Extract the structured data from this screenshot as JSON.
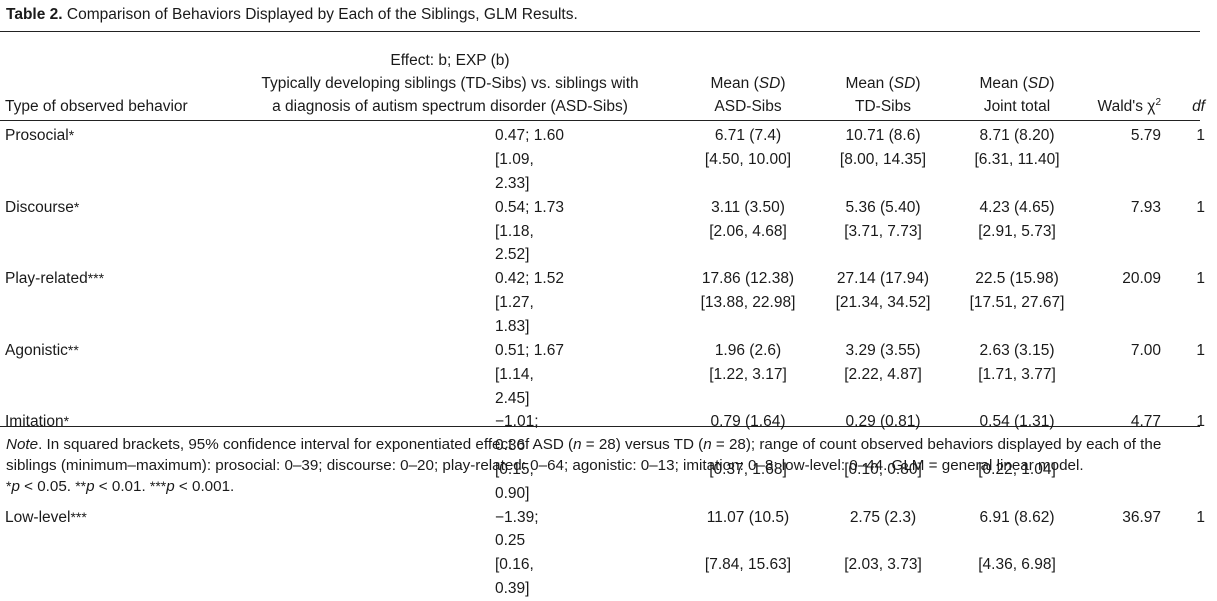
{
  "caption": {
    "label": "Table 2.",
    "text": "Comparison of Behaviors Displayed by Each of the Siblings, GLM Results."
  },
  "headers": {
    "type": "Type of observed behavior",
    "effect_line1": "Effect: b; EXP (b)",
    "effect_line2": "Typically developing siblings (TD-Sibs) vs. siblings with",
    "effect_line3": "a diagnosis of autism spectrum disorder (ASD-Sibs)",
    "mean_prefix": "Mean (",
    "sd": "SD",
    "mean_suffix": ")",
    "asd": "ASD-Sibs",
    "td": "TD-Sibs",
    "joint": "Joint total",
    "wald": "Wald's χ",
    "wald_sup": "2",
    "df": "df"
  },
  "rows": [
    {
      "behavior": "Prosocial",
      "stars": "*",
      "effect": "0.47; 1.60",
      "effect_ci": "[1.09, 2.33]",
      "asd": "6.71 (7.4)",
      "asd_range": "[4.50, 10.00]",
      "td": "10.71 (8.6)",
      "td_range": "[8.00, 14.35]",
      "joint": "8.71 (8.20)",
      "joint_range": "[6.31, 11.40]",
      "wald": "5.79",
      "df": "1"
    },
    {
      "behavior": "Discourse",
      "stars": "*",
      "effect": "0.54; 1.73",
      "effect_ci": "[1.18, 2.52]",
      "asd": "3.11 (3.50)",
      "asd_range": "[2.06, 4.68]",
      "td": "5.36 (5.40)",
      "td_range": "[3.71, 7.73]",
      "joint": "4.23 (4.65)",
      "joint_range": "[2.91, 5.73]",
      "wald": "7.93",
      "df": "1"
    },
    {
      "behavior": "Play-related",
      "stars": "***",
      "effect": "0.42; 1.52",
      "effect_ci": "[1.27, 1.83]",
      "asd": "17.86 (12.38)",
      "asd_range": "[13.88, 22.98]",
      "td": "27.14 (17.94)",
      "td_range": "[21.34, 34.52]",
      "joint": "22.5 (15.98)",
      "joint_range": "[17.51, 27.67]",
      "wald": "20.09",
      "df": "1"
    },
    {
      "behavior": "Agonistic",
      "stars": "**",
      "effect": "0.51; 1.67",
      "effect_ci": "[1.14, 2.45]",
      "asd": "1.96 (2.6)",
      "asd_range": "[1.22, 3.17]",
      "td": "3.29 (3.55)",
      "td_range": "[2.22, 4.87]",
      "joint": "2.63 (3.15)",
      "joint_range": "[1.71, 3.77]",
      "wald": "7.00",
      "df": "1"
    },
    {
      "behavior": "Imitation",
      "stars": "*",
      "effect": "−1.01; 0.36",
      "effect_ci": "[0.15, 0.90]",
      "asd": "0.79 (1.64)",
      "asd_range": "[0.37, 1.68]",
      "td": "0.29 (0.81)",
      "td_range": "[0.10, 0.80]",
      "joint": "0.54 (1.31)",
      "joint_range": "[0.22, 1.04]",
      "wald": "4.77",
      "df": "1"
    },
    {
      "behavior": "Low-level",
      "stars": "***",
      "effect": "−1.39; 0.25",
      "effect_ci": "[0.16, 0.39]",
      "asd": "11.07 (10.5)",
      "asd_range": "[7.84, 15.63]",
      "td": "2.75 (2.3)",
      "td_range": "[2.03, 3.73]",
      "joint": "6.91 (8.62)",
      "joint_range": "[4.36, 6.98]",
      "wald": "36.97",
      "df": "1"
    }
  ],
  "note": {
    "lead": "Note",
    "part1": ". In squared brackets, 95% confidence interval for exponentiated effect of ASD (",
    "n1": "n",
    "part2": " = 28) versus TD (",
    "n2": "n",
    "part3": " = 28); range of count observed behaviors displayed by each of the siblings (minimum–maximum): prosocial: 0–39; discourse: 0–20; play-related: 0–64; agonistic: 0–13; imitation: 0–8; low-level: 0–44. GLM = general linear model.",
    "s1": "*",
    "p1": "p",
    "t1": " < 0.05. ",
    "s2": "**",
    "p2": "p",
    "t2": " < 0.01. ",
    "s3": "***",
    "p3": "p",
    "t3": " < 0.001."
  }
}
